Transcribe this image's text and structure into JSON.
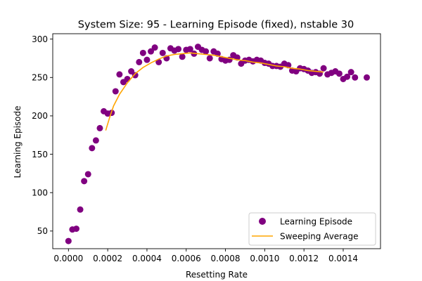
{
  "chart_data": {
    "type": "scatter",
    "title": "System Size: 95 - Learning Episode (fixed), nstable 30",
    "xlabel": "Resetting Rate",
    "ylabel": "Learning Episode",
    "xlim": [
      -8e-05,
      0.00159
    ],
    "ylim": [
      27,
      307
    ],
    "xticks": [
      0.0,
      0.0002,
      0.0004,
      0.0006,
      0.0008,
      0.001,
      0.0012,
      0.0014
    ],
    "xtick_labels": [
      "0.0000",
      "0.0002",
      "0.0004",
      "0.0006",
      "0.0008",
      "0.0010",
      "0.0012",
      "0.0014"
    ],
    "yticks": [
      50,
      100,
      150,
      200,
      250,
      300
    ],
    "ytick_labels": [
      "50",
      "100",
      "150",
      "200",
      "250",
      "300"
    ],
    "grid": false,
    "legend_position": "lower-right",
    "series": [
      {
        "name": "Learning Episode",
        "kind": "scatter",
        "color": "#800080",
        "x": [
          0.0,
          2e-05,
          4e-05,
          6e-05,
          8e-05,
          0.0001,
          0.00012,
          0.00014,
          0.00016,
          0.00018,
          0.0002,
          0.00022,
          0.00024,
          0.00026,
          0.00028,
          0.0003,
          0.00032,
          0.00034,
          0.00036,
          0.00038,
          0.0004,
          0.00042,
          0.00044,
          0.00046,
          0.00048,
          0.0005,
          0.00052,
          0.00054,
          0.00056,
          0.00058,
          0.0006,
          0.00062,
          0.00064,
          0.00066,
          0.00068,
          0.0007,
          0.00072,
          0.00074,
          0.00076,
          0.00078,
          0.0008,
          0.00082,
          0.00084,
          0.00086,
          0.00088,
          0.0009,
          0.00092,
          0.00094,
          0.00096,
          0.00098,
          0.001,
          0.00102,
          0.00104,
          0.00106,
          0.00108,
          0.0011,
          0.00112,
          0.00114,
          0.00116,
          0.00118,
          0.0012,
          0.00122,
          0.00124,
          0.00126,
          0.00128,
          0.0013,
          0.00132,
          0.00134,
          0.00136,
          0.00138,
          0.0014,
          0.00142,
          0.00144,
          0.00146,
          0.00152
        ],
        "y": [
          37,
          52,
          53,
          78,
          115,
          124,
          158,
          168,
          184,
          206,
          203,
          204,
          232,
          254,
          244,
          248,
          258,
          253,
          270,
          282,
          273,
          284,
          289,
          270,
          282,
          275,
          288,
          285,
          287,
          277,
          286,
          287,
          281,
          290,
          286,
          284,
          275,
          284,
          281,
          274,
          272,
          273,
          279,
          276,
          268,
          272,
          273,
          271,
          273,
          272,
          269,
          268,
          265,
          265,
          264,
          268,
          266,
          259,
          258,
          262,
          261,
          259,
          256,
          257,
          255,
          262,
          254,
          256,
          258,
          255,
          248,
          251,
          257,
          250,
          250
        ]
      },
      {
        "name": "Sweeping Average",
        "kind": "line",
        "color": "#ffa500",
        "x": [
          0.00019,
          0.00021,
          0.00023,
          0.00026,
          0.0003,
          0.00034,
          0.00038,
          0.00042,
          0.00046,
          0.0005,
          0.00054,
          0.00058,
          0.00062,
          0.00066,
          0.0007,
          0.00074,
          0.00078,
          0.00082,
          0.00086,
          0.0009,
          0.00094,
          0.00098,
          0.00102,
          0.00106,
          0.0011,
          0.00114,
          0.00118,
          0.00122,
          0.00126,
          0.0013
        ],
        "y": [
          181,
          198,
          213,
          228,
          243,
          255,
          263,
          269,
          274,
          278,
          280,
          281,
          282,
          281,
          280,
          279,
          277,
          275,
          273,
          272,
          270,
          269,
          267,
          265,
          264,
          262,
          261,
          259,
          258,
          257
        ]
      }
    ]
  }
}
